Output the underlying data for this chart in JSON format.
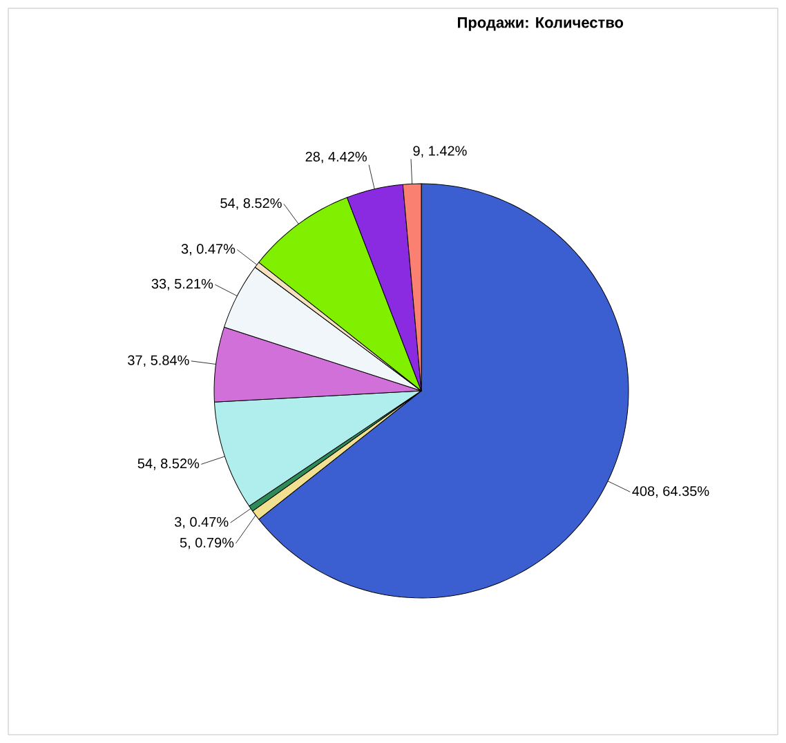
{
  "chart_data": {
    "type": "pie",
    "title": "Продажи: Количество",
    "categories": [
      null,
      null,
      null,
      null,
      null,
      null,
      null,
      null,
      null,
      null
    ],
    "values": [
      408,
      5,
      3,
      54,
      37,
      33,
      3,
      54,
      28,
      9
    ],
    "colors": [
      "#3b5fd0",
      "#f0e090",
      "#2e8b57",
      "#b0eeee",
      "#d070d8",
      "#f0f6fa",
      "#f5e0c0",
      "#80f000",
      "#8a2be2",
      "#fa8072"
    ],
    "value_labels": [
      "408, 64.35%",
      "5, 0.79%",
      "3, 0.47%",
      "54, 8.52%",
      "37, 5.84%",
      "33, 5.21%",
      "3, 0.47%",
      "54, 8.52%",
      "28, 4.42%",
      "9, 1.42%"
    ]
  }
}
